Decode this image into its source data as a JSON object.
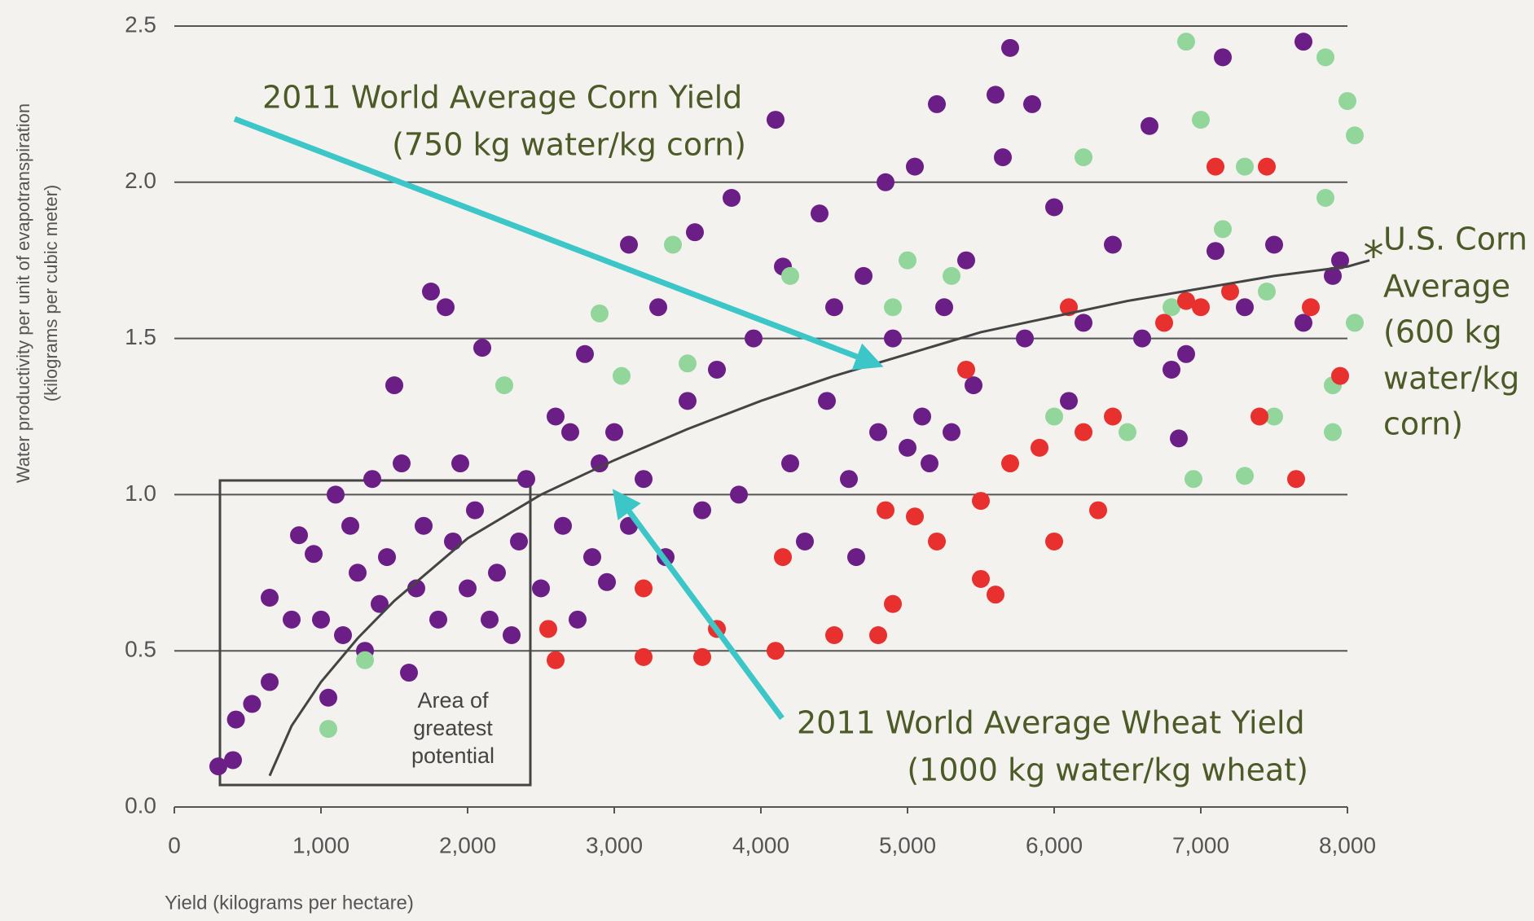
{
  "chart_data": {
    "type": "scatter",
    "ylabel": [
      "Water productivity per unit of evapotranspiration",
      "(kilograms per cubic meter)"
    ],
    "xlabel": "Yield (kilograms per hectare)",
    "xlim": [
      0,
      8000
    ],
    "ylim": [
      0,
      2.5
    ],
    "xticks": [
      0,
      {
        "value": 1000,
        "label": "1,000"
      },
      {
        "value": 2000,
        "label": "2,000"
      },
      {
        "value": 3000,
        "label": "3,000"
      },
      {
        "value": 4000,
        "label": "4,000"
      },
      {
        "value": 5000,
        "label": "5,000"
      },
      {
        "value": 6000,
        "label": "6,000"
      },
      {
        "value": 7000,
        "label": "7,000"
      },
      {
        "value": 8000,
        "label": "8,000"
      }
    ],
    "yticks": [
      {
        "value": 0,
        "label": "0.0"
      },
      0.5,
      {
        "value": 1,
        "label": "1.0"
      },
      1.5,
      {
        "value": 2,
        "label": "2.0"
      },
      2.5
    ],
    "grid": true,
    "series": [
      {
        "color": "#6b1f86",
        "x": [
          300,
          400,
          420,
          530,
          650,
          650,
          800,
          850,
          950,
          1000,
          1050,
          1100,
          1150,
          1200,
          1250,
          1300,
          1350,
          1400,
          1450,
          1500,
          1550,
          1600,
          1650,
          1700,
          1750,
          1800,
          1850,
          1900,
          1950,
          2000,
          2050,
          2100,
          2150,
          2200,
          2300,
          2350,
          2400,
          2500,
          2600,
          2650,
          2700,
          2750,
          2800,
          2850,
          2900,
          2950,
          3000,
          3100,
          3100,
          3200,
          3300,
          3350,
          3500,
          3550,
          3600,
          3700,
          3800,
          3850,
          3950,
          4100,
          4150,
          4200,
          4300,
          4400,
          4450,
          4500,
          4600,
          4650,
          4700,
          4800,
          4850,
          4900,
          5000,
          5050,
          5100,
          5150,
          5200,
          5250,
          5300,
          5400,
          5450,
          5600,
          5650,
          5700,
          5800,
          5850,
          6000,
          6100,
          6200,
          6400,
          6600,
          6650,
          6800,
          6900,
          7100,
          7150,
          7300,
          7500,
          7700,
          7700,
          7900,
          7950,
          6850
        ],
        "values": [
          0.13,
          0.15,
          0.28,
          0.33,
          0.4,
          0.67,
          0.6,
          0.87,
          0.81,
          0.6,
          0.35,
          1.0,
          0.55,
          0.9,
          0.75,
          0.5,
          1.05,
          0.65,
          0.8,
          1.35,
          1.1,
          0.43,
          0.7,
          0.9,
          1.65,
          0.6,
          1.6,
          0.85,
          1.1,
          0.7,
          0.95,
          1.47,
          0.6,
          0.75,
          0.55,
          0.85,
          1.05,
          0.7,
          1.25,
          0.9,
          1.2,
          0.6,
          1.45,
          0.8,
          1.1,
          0.72,
          1.2,
          0.9,
          1.8,
          1.05,
          1.6,
          0.8,
          1.3,
          1.84,
          0.95,
          1.4,
          1.95,
          1.0,
          1.5,
          2.2,
          1.73,
          1.1,
          0.85,
          1.9,
          1.3,
          1.6,
          1.05,
          0.8,
          1.7,
          1.2,
          2.0,
          1.5,
          1.15,
          2.05,
          1.25,
          1.1,
          2.25,
          1.6,
          1.2,
          1.75,
          1.35,
          2.28,
          2.08,
          2.43,
          1.5,
          2.25,
          1.92,
          1.3,
          1.55,
          1.8,
          1.5,
          2.18,
          1.4,
          1.45,
          1.78,
          2.4,
          1.6,
          1.8,
          2.45,
          1.55,
          1.7,
          1.75,
          1.18
        ]
      },
      {
        "color": "#92d69c",
        "x": [
          1050,
          1300,
          2250,
          2900,
          3050,
          3400,
          3500,
          4200,
          4900,
          5000,
          5300,
          6000,
          6200,
          6500,
          6800,
          6900,
          7000,
          7300,
          7450,
          7300,
          7150,
          7500,
          7850,
          7900,
          8000,
          8050,
          8050,
          7900,
          6950,
          7850
        ],
        "values": [
          0.25,
          0.47,
          1.35,
          1.58,
          1.38,
          1.8,
          1.42,
          1.7,
          1.6,
          1.75,
          1.7,
          1.25,
          2.08,
          1.2,
          1.6,
          2.45,
          2.2,
          2.05,
          1.65,
          1.06,
          1.85,
          1.25,
          2.4,
          1.35,
          2.26,
          2.15,
          1.55,
          1.2,
          1.05,
          1.95
        ]
      },
      {
        "color": "#e8302f",
        "x": [
          2600,
          2550,
          3200,
          3200,
          3600,
          3700,
          4100,
          4150,
          4500,
          4800,
          4850,
          4900,
          5050,
          5200,
          5500,
          5500,
          5600,
          5700,
          5900,
          6000,
          6100,
          6200,
          6300,
          6400,
          6750,
          7000,
          7100,
          7200,
          7400,
          7450,
          7650,
          7750,
          7950,
          5400,
          6900
        ],
        "values": [
          0.47,
          0.57,
          0.7,
          0.48,
          0.48,
          0.57,
          0.5,
          0.8,
          0.55,
          0.55,
          0.95,
          0.65,
          0.93,
          0.85,
          0.98,
          0.73,
          0.68,
          1.1,
          1.15,
          0.85,
          1.6,
          1.2,
          0.95,
          1.25,
          1.55,
          1.6,
          2.05,
          1.65,
          1.25,
          2.05,
          1.05,
          1.6,
          1.38,
          1.4,
          1.62
        ]
      }
    ],
    "trend": {
      "color": "#444444",
      "x": [
        650,
        800,
        1000,
        1250,
        1500,
        2000,
        2500,
        3000,
        3500,
        4000,
        4500,
        5000,
        5500,
        6000,
        6500,
        7000,
        7500,
        8000,
        8150
      ],
      "values": [
        0.1,
        0.26,
        0.4,
        0.54,
        0.66,
        0.86,
        1.0,
        1.11,
        1.21,
        1.3,
        1.38,
        1.45,
        1.52,
        1.57,
        1.62,
        1.66,
        1.7,
        1.73,
        1.75
      ]
    },
    "annotations": {
      "corn_world": [
        "2011 World Average Corn Yield",
        "(750 kg water/kg corn)"
      ],
      "wheat_world": [
        "2011 World Average Wheat Yield",
        "(1000 kg water/kg wheat)"
      ],
      "us_corn_marker": "*",
      "us_corn": [
        "U.S. Corn",
        "Average",
        "(600 kg",
        "water/kg",
        "corn)"
      ],
      "box": [
        "Area of",
        "greatest",
        "potential"
      ]
    }
  }
}
